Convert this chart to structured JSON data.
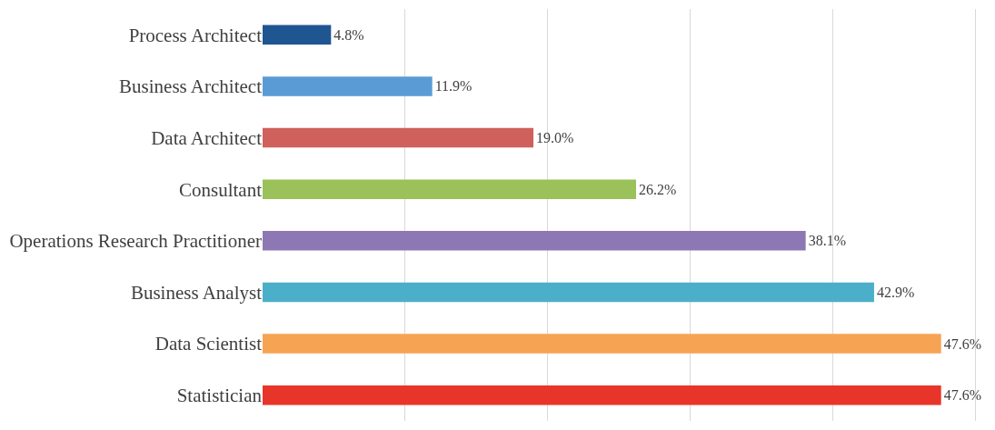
{
  "chart_data": {
    "type": "bar",
    "orientation": "horizontal",
    "categories": [
      "Process Architect",
      "Business Architect",
      "Data Architect",
      "Consultant",
      "Operations Research Practitioner",
      "Business Analyst",
      "Data Scientist",
      "Statistician"
    ],
    "values": [
      4.8,
      11.9,
      19.0,
      26.2,
      38.1,
      42.9,
      47.6,
      47.6
    ],
    "value_labels": [
      "4.8%",
      "11.9%",
      "19.0%",
      "26.2%",
      "38.1%",
      "42.9%",
      "47.6%",
      "47.6%"
    ],
    "colors": [
      "#1f5591",
      "#5b9bd5",
      "#cf605c",
      "#9bc15a",
      "#8e78b4",
      "#4bafc9",
      "#f6a453",
      "#e8352a"
    ],
    "grid": "x",
    "tick_labels": "y"
  }
}
